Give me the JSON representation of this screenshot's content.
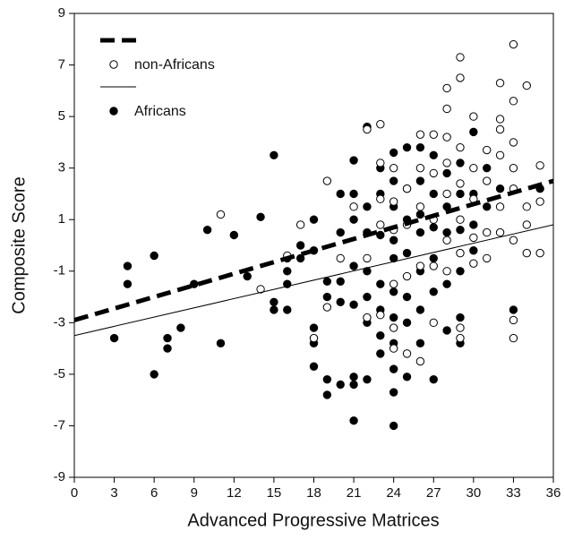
{
  "chart_data": {
    "type": "scatter",
    "x_label": "Advanced Progressive Matrices",
    "y_label": "Composite Score",
    "xlim": [
      0,
      36
    ],
    "xticks": [
      0,
      3,
      6,
      9,
      12,
      15,
      18,
      21,
      24,
      27,
      30,
      33,
      36
    ],
    "ylim": [
      -9,
      9
    ],
    "yticks": [
      -9,
      -7,
      -5,
      -3,
      -1,
      1,
      3,
      5,
      7,
      9
    ],
    "legend": "upper left",
    "series": [
      {
        "name": "non-Africans",
        "color": "#000000",
        "marker": "open",
        "line_style": "dashed",
        "trend_x": [
          0,
          36
        ],
        "trend": [
          -2.9,
          2.5
        ],
        "x": [
          11,
          14,
          16,
          17,
          18,
          19,
          19,
          20,
          21,
          22,
          22,
          22,
          23,
          23,
          23,
          23,
          23,
          24,
          24,
          24,
          24,
          24,
          24,
          25,
          25,
          25,
          25,
          26,
          26,
          26,
          26,
          26,
          27,
          27,
          27,
          27,
          27,
          28,
          28,
          28,
          28,
          28,
          28,
          28,
          29,
          29,
          29,
          29,
          29,
          29,
          29,
          29,
          30,
          30,
          30,
          30,
          30,
          31,
          31,
          31,
          31,
          32,
          32,
          32,
          32,
          32,
          32,
          33,
          33,
          33,
          33,
          33,
          33,
          33,
          33,
          34,
          34,
          34,
          34,
          35,
          35,
          35
        ],
        "values": [
          1.2,
          -1.7,
          -0.4,
          0.8,
          -3.6,
          2.5,
          -2.4,
          -0.5,
          1.5,
          4.5,
          -0.5,
          -2.8,
          4.7,
          3.2,
          1.8,
          0.8,
          -2.7,
          3,
          1.7,
          0.6,
          -1.5,
          -3.2,
          -4,
          2.2,
          0.8,
          -1.2,
          -4.2,
          4.3,
          3,
          1.5,
          -0.8,
          -4.5,
          4.3,
          2.8,
          1,
          -0.8,
          -3,
          6.1,
          5.3,
          4.2,
          3.2,
          2,
          0.2,
          -1,
          7.3,
          6.5,
          3.8,
          2.4,
          1,
          -0.3,
          -3.2,
          -3.6,
          5,
          3,
          1.8,
          0.3,
          -0.7,
          3.7,
          2.5,
          0.5,
          -0.5,
          6.3,
          4.9,
          4.5,
          3.5,
          1.5,
          0.5,
          7.8,
          5.6,
          4,
          3,
          2.2,
          0.2,
          -2.9,
          -3.6,
          6.2,
          1.5,
          0.8,
          -0.3,
          3.1,
          1.7,
          -0.3
        ]
      },
      {
        "name": "Africans",
        "color": "#000000",
        "marker": "filled",
        "line_style": "solid",
        "trend_x": [
          0,
          36
        ],
        "trend": [
          -3.5,
          0.8
        ],
        "x": [
          3,
          4,
          4,
          6,
          6,
          7,
          7,
          8,
          9,
          10,
          11,
          12,
          13,
          14,
          15,
          15,
          15,
          16,
          16,
          16,
          16,
          17,
          17,
          18,
          18,
          18,
          18,
          18,
          19,
          19,
          19,
          19,
          20,
          20,
          20,
          20,
          20,
          21,
          21,
          21,
          21,
          21,
          21,
          21,
          21,
          22,
          22,
          22,
          22,
          22,
          22,
          22,
          23,
          23,
          23,
          23,
          23,
          23,
          23,
          24,
          24,
          24,
          24,
          24,
          24,
          24,
          24,
          24,
          24,
          24,
          25,
          25,
          25,
          25,
          25,
          25,
          25,
          26,
          26,
          26,
          26,
          26,
          26,
          26,
          27,
          27,
          27,
          27,
          27,
          27,
          28,
          28,
          28,
          28,
          28,
          29,
          29,
          29,
          29,
          29,
          29,
          30,
          30,
          30,
          30,
          31,
          31,
          32,
          33,
          35
        ],
        "values": [
          -3.6,
          -0.8,
          -1.5,
          -0.4,
          -5,
          -3.6,
          -4,
          -3.2,
          -1.5,
          0.6,
          -3.8,
          0.4,
          -1.2,
          1.1,
          3.5,
          -2.2,
          -2.5,
          -0.5,
          -1,
          -1.5,
          -2.5,
          -0.5,
          0,
          1,
          -3.2,
          -3.8,
          -4.7,
          -0.2,
          -1.4,
          -2,
          -5.2,
          -5.8,
          2,
          0.5,
          -1.4,
          -2.2,
          -5.4,
          3.3,
          2,
          1,
          -0.8,
          -2.3,
          -5.1,
          -5.4,
          -6.8,
          4.6,
          1.5,
          0.5,
          -1,
          -2,
          -3,
          -5.2,
          3,
          2,
          0.4,
          -1.5,
          -2.5,
          -3.5,
          -4.2,
          3.6,
          2.5,
          1.5,
          0.2,
          -0.5,
          -1.8,
          -2.8,
          -3.8,
          -4.8,
          -5.7,
          -7,
          3.8,
          2.2,
          1,
          -0.3,
          -2,
          -3,
          -5.1,
          3.8,
          2.5,
          1.2,
          0.5,
          -1,
          -2.5,
          -3.8,
          3.5,
          2,
          0.7,
          -0.5,
          -1.8,
          -5.2,
          2.8,
          1.5,
          0.5,
          -1.5,
          -3.3,
          3.2,
          2,
          0.6,
          -1,
          -2.8,
          -3.8,
          4.4,
          2,
          0.8,
          -0.2,
          3,
          1.5,
          2.2,
          -2.5,
          2.2
        ]
      }
    ]
  }
}
